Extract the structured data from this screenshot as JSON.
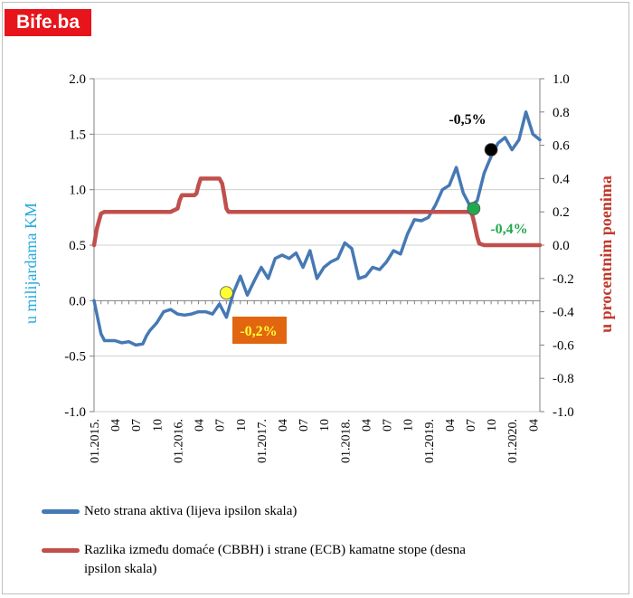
{
  "logo": {
    "text": "Bife.ba",
    "color": "#e8141b"
  },
  "chart_data": {
    "type": "line",
    "x_tick_labels": [
      "01.2015.",
      "04",
      "07",
      "10",
      "01.2016.",
      "04",
      "07",
      "10",
      "01.2017.",
      "04",
      "07",
      "10",
      "01.2018.",
      "04",
      "07",
      "10",
      "01.2019.",
      "04",
      "07",
      "10",
      "01.2020.",
      "04"
    ],
    "left_axis": {
      "label": "u  milijardama KM",
      "ylim": [
        -1.0,
        2.0
      ],
      "ticks": [
        "-1.0",
        "-0.5",
        "0.0",
        "0.5",
        "1.0",
        "1.5",
        "2.0"
      ],
      "color": "#29a9de"
    },
    "right_axis": {
      "label": "u procentnim poenima",
      "ylim": [
        -1.0,
        1.0
      ],
      "ticks": [
        "-1.0",
        "-0.8",
        "-0.6",
        "-0.4",
        "-0.2",
        "0.0",
        "0.2",
        "0.4",
        "0.6",
        "0.8",
        "1.0"
      ],
      "color": "#c0392b"
    },
    "series": [
      {
        "name": "Neto strana aktiva (lijeva ipsilon skala)",
        "axis": "left",
        "color": "#4679b4",
        "x": [
          0,
          1,
          1.5,
          2,
          3,
          4,
          5,
          6,
          7,
          7.5,
          8,
          9,
          10,
          11,
          12,
          13,
          14,
          15,
          16,
          17,
          18,
          19,
          20,
          21,
          22,
          23,
          24,
          25,
          26,
          27,
          28,
          29,
          30,
          31,
          32,
          33,
          34,
          35,
          36,
          37,
          38,
          39,
          40,
          41,
          42,
          43,
          44,
          45,
          46,
          47,
          48,
          49,
          50,
          51,
          52,
          53,
          54,
          55,
          56,
          57,
          58,
          59,
          60,
          61,
          62,
          63,
          64
        ],
        "values": [
          0.0,
          -0.3,
          -0.36,
          -0.36,
          -0.36,
          -0.38,
          -0.37,
          -0.4,
          -0.39,
          -0.32,
          -0.27,
          -0.2,
          -0.1,
          -0.08,
          -0.12,
          -0.13,
          -0.12,
          -0.1,
          -0.1,
          -0.12,
          -0.03,
          -0.15,
          0.07,
          0.22,
          0.05,
          0.18,
          0.3,
          0.2,
          0.38,
          0.41,
          0.38,
          0.43,
          0.3,
          0.45,
          0.2,
          0.3,
          0.35,
          0.38,
          0.52,
          0.47,
          0.2,
          0.22,
          0.3,
          0.28,
          0.35,
          0.45,
          0.42,
          0.6,
          0.73,
          0.72,
          0.75,
          0.86,
          1.0,
          1.04,
          1.2,
          0.97,
          0.85,
          0.9,
          1.15,
          1.3,
          1.42,
          1.47,
          1.36,
          1.45,
          1.7,
          1.5,
          1.45
        ]
      },
      {
        "name": "Razlika između domaće (CBBH) i strane (ECB) kamatne stope (desna ipsilon skala)",
        "axis": "right",
        "color": "#c0504d",
        "x": [
          0,
          0.4,
          1,
          1.5,
          2,
          11,
          12,
          12.3,
          12.6,
          13,
          14,
          14.4,
          14.7,
          15,
          15.3,
          16,
          17,
          18,
          18.4,
          18.7,
          19,
          19.3,
          20,
          54,
          54.3,
          54.6,
          55,
          55.3,
          56,
          64
        ],
        "values": [
          0.0,
          0.1,
          0.19,
          0.2,
          0.2,
          0.2,
          0.22,
          0.27,
          0.3,
          0.3,
          0.3,
          0.3,
          0.31,
          0.36,
          0.4,
          0.4,
          0.4,
          0.4,
          0.37,
          0.3,
          0.22,
          0.2,
          0.2,
          0.2,
          0.18,
          0.13,
          0.05,
          0.01,
          0.0,
          0.0
        ]
      }
    ],
    "annotations": [
      {
        "text": "-0,2%",
        "x": 19,
        "axis": "left",
        "y": 0.07,
        "dot_color": "#ffff33",
        "text_color": "#ffff33",
        "box_color": "#e2650f"
      },
      {
        "text": "-0,4%",
        "x": 54.5,
        "axis": "left",
        "y": 0.83,
        "dot_color": "#21a84e",
        "text_color": "#21a84e"
      },
      {
        "text": "-0,5%",
        "x": 57,
        "axis": "left",
        "y": 1.36,
        "dot_color": "#000000",
        "text_color": "#000000"
      }
    ]
  },
  "legend": [
    {
      "label": "Neto strana aktiva (lijeva ipsilon skala)",
      "color": "#4679b4"
    },
    {
      "label_line1": "Razlika između domaće (CBBH) i strane (ECB) kamatne stope (desna",
      "label_line2": "ipsilon skala)",
      "color": "#c0504d"
    }
  ]
}
